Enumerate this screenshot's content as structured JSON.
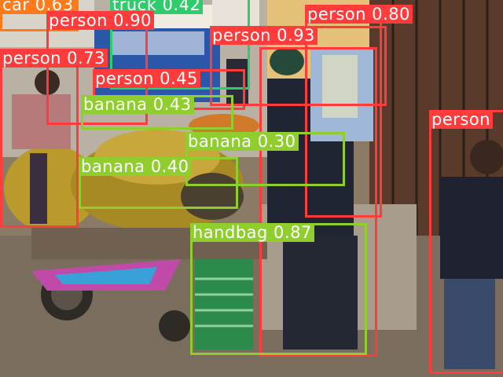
{
  "image": {
    "scene": "outdoor street market with banana cart and people"
  },
  "colors": {
    "person": "#ff3b3b",
    "banana": "#8fce2c",
    "handbag": "#8fce2c",
    "car": "#ff7a1a",
    "truck": "#2ecc6a"
  },
  "detections": [
    {
      "label": "car",
      "score": "0.63",
      "class": "car"
    },
    {
      "label": "truck",
      "score": "0.42",
      "class": "truck"
    },
    {
      "label": "person",
      "score": "0.90",
      "class": "person"
    },
    {
      "label": "person",
      "score": "0.80",
      "class": "person"
    },
    {
      "label": "person",
      "score": "0.73",
      "class": "person"
    },
    {
      "label": "person",
      "score": "0.93",
      "class": "person"
    },
    {
      "label": "person",
      "score": "0.45",
      "class": "person"
    },
    {
      "label": "person",
      "score": "",
      "class": "person"
    },
    {
      "label": "banana",
      "score": "0.43",
      "class": "banana"
    },
    {
      "label": "banana",
      "score": "0.30",
      "class": "banana"
    },
    {
      "label": "banana",
      "score": "0.40",
      "class": "banana"
    },
    {
      "label": "handbag",
      "score": "0.87",
      "class": "handbag"
    },
    {
      "label": "person",
      "score": "",
      "class": "person"
    }
  ]
}
